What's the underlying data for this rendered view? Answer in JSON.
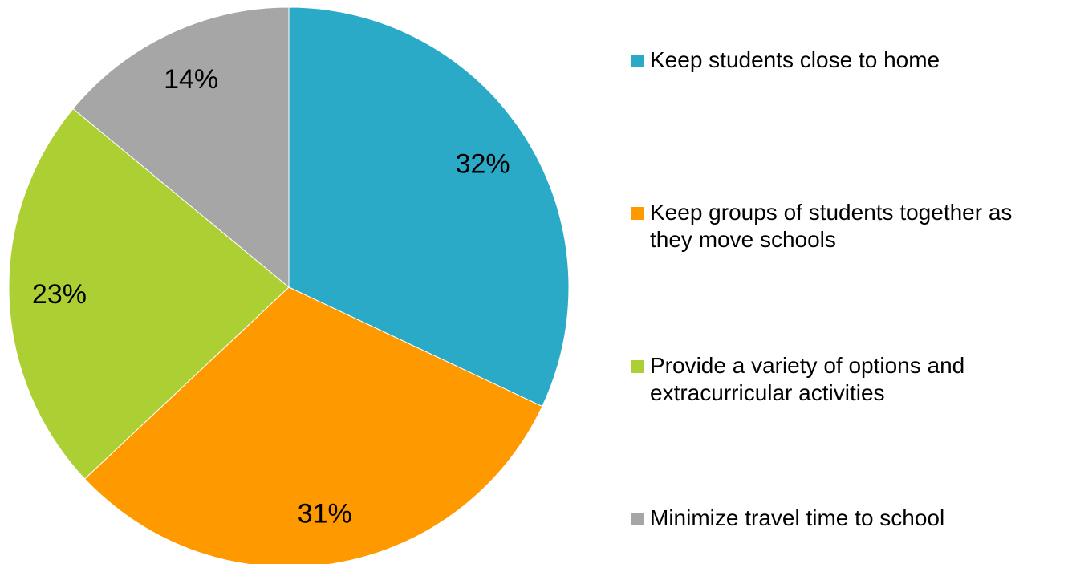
{
  "chart_data": {
    "type": "pie",
    "categories": [
      "Keep students close to home",
      "Keep groups of students together as\nthey move schools",
      "Provide a variety of options and\nextracurricular activities",
      "Minimize travel time to school"
    ],
    "values": [
      32,
      31,
      23,
      14
    ],
    "labels": [
      "32%",
      "31%",
      "23%",
      "14%"
    ],
    "colors": [
      "#2BAAC8",
      "#FF9900",
      "#ACCF34",
      "#A6A6A6"
    ],
    "start_angle": "12 o'clock",
    "direction": "clockwise",
    "legend_position": "right"
  }
}
